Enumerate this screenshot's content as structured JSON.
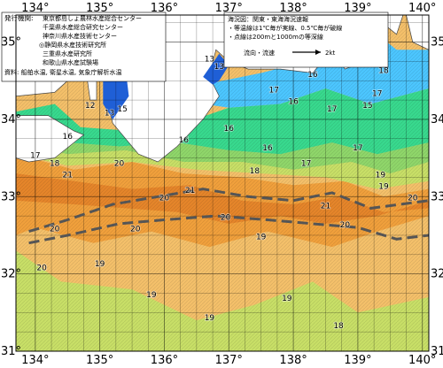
{
  "map": {
    "lon_ticks": [
      {
        "value": 134,
        "label": "134°"
      },
      {
        "value": 135,
        "label": "135°"
      },
      {
        "value": 136,
        "label": "136°"
      },
      {
        "value": 137,
        "label": "137°"
      },
      {
        "value": 138,
        "label": "138°"
      },
      {
        "value": 139,
        "label": "139°"
      },
      {
        "value": 140,
        "label": "140°"
      }
    ],
    "lat_ticks": [
      {
        "value": 35,
        "label": "35°"
      },
      {
        "value": 34,
        "label": "34°"
      },
      {
        "value": 33,
        "label": "33°"
      },
      {
        "value": 32,
        "label": "32°"
      },
      {
        "value": 31,
        "label": "31°"
      }
    ],
    "colors": {
      "temp_14_15": "#1f5fd6",
      "temp_15_16": "#4cc6ff",
      "temp_16_17": "#38d98e",
      "temp_17_18": "#8fd66a",
      "temp_18_19": "#c8df67",
      "temp_19_20": "#f4c06a",
      "temp_20_21": "#f0a03c",
      "temp_21_22": "#e5852a",
      "land": "#ffffff",
      "kuroshio_axis": "#555555"
    },
    "temp_labels": [
      {
        "text": "15",
        "lon": 139.2,
        "lat": 34.95
      },
      {
        "text": "15",
        "lon": 139.15,
        "lat": 34.15
      },
      {
        "text": "16",
        "lon": 139.0,
        "lat": 34.75
      },
      {
        "text": "16",
        "lon": 138.3,
        "lat": 34.55
      },
      {
        "text": "17",
        "lon": 137.7,
        "lat": 34.35
      },
      {
        "text": "17",
        "lon": 139.3,
        "lat": 34.3
      },
      {
        "text": "18",
        "lon": 139.4,
        "lat": 34.6
      },
      {
        "text": "16",
        "lon": 136.3,
        "lat": 33.7
      },
      {
        "text": "16",
        "lon": 137.0,
        "lat": 33.85
      },
      {
        "text": "16",
        "lon": 138.0,
        "lat": 34.2
      },
      {
        "text": "17",
        "lon": 138.6,
        "lat": 34.1
      },
      {
        "text": "16",
        "lon": 137.6,
        "lat": 33.6
      },
      {
        "text": "20",
        "lon": 135.3,
        "lat": 33.4
      },
      {
        "text": "21",
        "lon": 136.4,
        "lat": 33.05
      },
      {
        "text": "18",
        "lon": 137.4,
        "lat": 33.3
      },
      {
        "text": "17",
        "lon": 138.2,
        "lat": 33.4
      },
      {
        "text": "17",
        "lon": 139.0,
        "lat": 33.6
      },
      {
        "text": "19",
        "lon": 139.35,
        "lat": 33.25
      },
      {
        "text": "19",
        "lon": 139.4,
        "lat": 33.1
      },
      {
        "text": "20",
        "lon": 139.85,
        "lat": 32.95
      },
      {
        "text": "21",
        "lon": 134.5,
        "lat": 33.25
      },
      {
        "text": "20",
        "lon": 134.3,
        "lat": 32.55
      },
      {
        "text": "20",
        "lon": 135.55,
        "lat": 32.55
      },
      {
        "text": "20",
        "lon": 136.0,
        "lat": 32.95
      },
      {
        "text": "20",
        "lon": 136.95,
        "lat": 32.7
      },
      {
        "text": "21",
        "lon": 138.5,
        "lat": 32.85
      },
      {
        "text": "20",
        "lon": 138.8,
        "lat": 32.6
      },
      {
        "text": "19",
        "lon": 137.5,
        "lat": 32.45
      },
      {
        "text": "19",
        "lon": 135.0,
        "lat": 32.1
      },
      {
        "text": "20",
        "lon": 134.1,
        "lat": 32.05
      },
      {
        "text": "19",
        "lon": 135.8,
        "lat": 31.7
      },
      {
        "text": "19",
        "lon": 136.7,
        "lat": 31.4
      },
      {
        "text": "19",
        "lon": 137.9,
        "lat": 31.65
      },
      {
        "text": "18",
        "lon": 138.7,
        "lat": 31.3
      },
      {
        "text": "17",
        "lon": 134.0,
        "lat": 33.5
      },
      {
        "text": "18",
        "lon": 134.3,
        "lat": 33.4
      },
      {
        "text": "16",
        "lon": 134.5,
        "lat": 33.75
      }
    ],
    "islands_temp_labels": [
      {
        "text": "13",
        "lon": 136.7,
        "lat": 34.75
      },
      {
        "text": "13",
        "lon": 136.85,
        "lat": 34.65
      },
      {
        "text": "15",
        "lon": 137.1,
        "lat": 34.7
      },
      {
        "text": "12",
        "lon": 134.85,
        "lat": 34.15
      },
      {
        "text": "13",
        "lon": 135.15,
        "lat": 34.05
      },
      {
        "text": "15",
        "lon": 135.35,
        "lat": 34.1
      }
    ]
  },
  "info_left": {
    "heading": "発行機関:",
    "lines": [
      "東京都島しょ農林水産総合センター",
      "千葉県水産総合研究センター",
      "神奈川県水産技術センター",
      "◎静岡県水産技術研究所",
      "三重県水産研究所",
      "和歌山県水産試験場"
    ],
    "source": "資料: 船舶水温, 衛星水温, 気象庁解析水温"
  },
  "info_right": {
    "lines": [
      "海況図：関東・東海海況速報",
      "・等温線は1℃毎が実線、0.5℃毎が破線",
      "・点線は200mと1000mの等深線"
    ],
    "flow_label": "流向・流速",
    "flow_value": "2kt"
  }
}
